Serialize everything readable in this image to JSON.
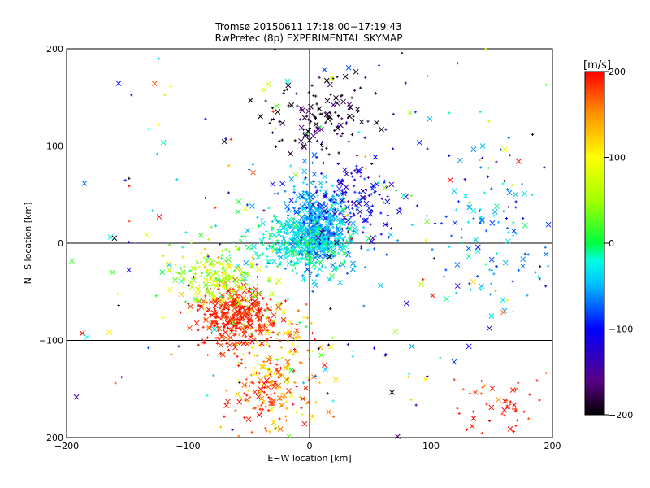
{
  "chart_data": {
    "type": "scatter",
    "title": "Tromsø 20150611 17:18:00−17:19:43",
    "subtitle": "RwPretec (8p) EXPERIMENTAL SKYMAP",
    "xlabel": "E−W location [km]",
    "ylabel": "N−S location [km]",
    "xlim": [
      -200,
      200
    ],
    "ylim": [
      -200,
      200
    ],
    "xticks": [
      -200,
      -100,
      0,
      100,
      200
    ],
    "yticks": [
      -200,
      -100,
      0,
      100,
      200
    ],
    "xtick_labels": [
      "−200",
      "−100",
      "0",
      "100",
      "200"
    ],
    "ytick_labels": [
      "−200",
      "−100",
      "0",
      "100",
      "200"
    ],
    "grid": true,
    "colorbar": {
      "label": "[m/s]",
      "range": [
        -200,
        200
      ],
      "ticks": [
        200,
        100,
        0,
        -100,
        -200
      ],
      "tick_labels": [
        "200",
        "100",
        "0",
        "−100",
        "−200"
      ],
      "colormap": "black-purple-blue-cyan-green-yellow-red"
    },
    "markers": [
      "x",
      "+"
    ],
    "clusters": [
      {
        "cx": 5,
        "cy": 15,
        "sx": 15,
        "sy": 20,
        "n": 520,
        "v": -55,
        "vs": 15
      },
      {
        "cx": -8,
        "cy": 0,
        "sx": 22,
        "sy": 15,
        "n": 300,
        "v": -20,
        "vs": 20
      },
      {
        "cx": 5,
        "cy": 130,
        "sx": 25,
        "sy": 22,
        "n": 130,
        "v": -190,
        "vs": 15
      },
      {
        "cx": 35,
        "cy": 45,
        "sx": 25,
        "sy": 30,
        "n": 170,
        "v": -110,
        "vs": 25
      },
      {
        "cx": -60,
        "cy": -75,
        "sx": 15,
        "sy": 15,
        "n": 380,
        "v": 190,
        "vs": 15
      },
      {
        "cx": -75,
        "cy": -35,
        "sx": 20,
        "sy": 15,
        "n": 200,
        "v": 60,
        "vs": 35
      },
      {
        "cx": -25,
        "cy": -130,
        "sx": 20,
        "sy": 30,
        "n": 190,
        "v": 130,
        "vs": 45
      },
      {
        "cx": -40,
        "cy": -160,
        "sx": 15,
        "sy": 18,
        "n": 70,
        "v": 185,
        "vs": 15
      },
      {
        "cx": 160,
        "cy": -170,
        "sx": 18,
        "sy": 15,
        "n": 50,
        "v": 190,
        "vs": 15
      },
      {
        "cx": 150,
        "cy": 10,
        "sx": 30,
        "sy": 35,
        "n": 110,
        "v": -60,
        "vs": 30
      },
      {
        "cx": 0,
        "cy": 0,
        "sx": 120,
        "sy": 120,
        "n": 260,
        "v": 0,
        "vs": 130
      }
    ]
  }
}
